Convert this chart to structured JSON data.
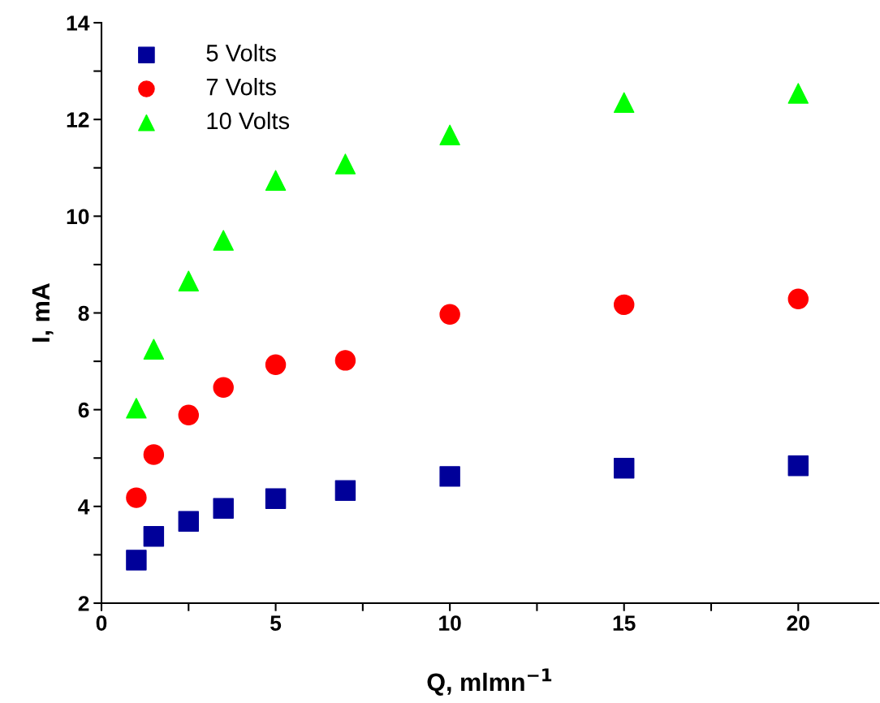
{
  "chart_data": {
    "type": "scatter",
    "xlabel": "Q, mlmn$^{−1}$",
    "ylabel": "I, mA",
    "x": [
      1,
      1.5,
      2.5,
      3.5,
      5,
      7,
      10,
      15,
      20
    ],
    "series": [
      {
        "name": "5 Volts",
        "color": "#000099",
        "marker": "square",
        "values": [
          2.89,
          3.38,
          3.69,
          3.96,
          4.16,
          4.33,
          4.62,
          4.79,
          4.84
        ]
      },
      {
        "name": "7 Volts",
        "color": "#ff0000",
        "marker": "circle",
        "values": [
          4.18,
          5.07,
          5.89,
          6.46,
          6.93,
          7.02,
          7.97,
          8.17,
          8.29
        ]
      },
      {
        "name": "10 Volts",
        "color": "#00ff00",
        "marker": "triangle",
        "values": [
          6.03,
          7.25,
          8.66,
          9.5,
          10.74,
          11.08,
          11.68,
          12.35,
          12.54
        ]
      }
    ],
    "xlim": [
      0,
      22.3
    ],
    "ylim": [
      2,
      14
    ],
    "xticks": [
      0,
      {
        "value": 2.5,
        "label": null
      },
      5,
      {
        "value": 7.5,
        "label": null
      },
      10,
      {
        "value": 12.5,
        "label": null
      },
      15,
      {
        "value": 17.5,
        "label": null
      },
      20
    ],
    "yticks": [
      2,
      {
        "value": 3,
        "label": null
      },
      4,
      {
        "value": 5,
        "label": null
      },
      6,
      {
        "value": 7,
        "label": null
      },
      8,
      {
        "value": 9,
        "label": null
      },
      10,
      {
        "value": 11,
        "label": null
      },
      12,
      {
        "value": 13,
        "label": null
      },
      14
    ],
    "grid": false,
    "legend": "top left"
  }
}
